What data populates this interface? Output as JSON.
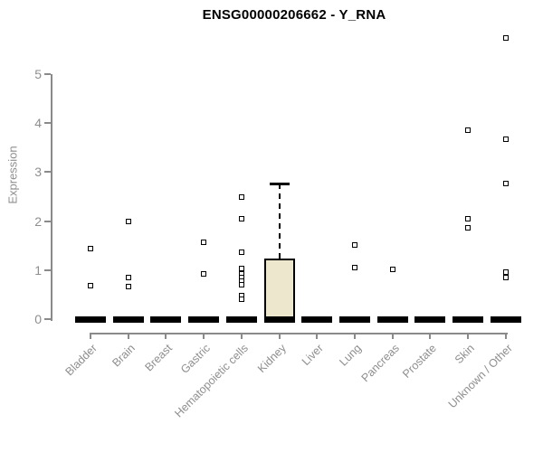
{
  "title": "ENSG00000206662 - Y_RNA",
  "chart_data": {
    "type": "boxplot",
    "title": "ENSG00000206662 - Y_RNA",
    "xlabel": "",
    "ylabel": "Expression",
    "ylim": [
      0,
      5.8
    ],
    "yticks": [
      0,
      1,
      2,
      3,
      4,
      5
    ],
    "grid": false,
    "legend": "none",
    "colors": {
      "box_fill": "#ECE7CD",
      "box_border": "#000000",
      "axis": "#8a8a8a",
      "tick_label": "#8e8e8e",
      "title": "#000000",
      "outlier_fill": "#ffffff",
      "outlier_border": "#000000"
    },
    "categories": [
      "Bladder",
      "Brain",
      "Breast",
      "Gastric",
      "Hematopoietic cells",
      "Kidney",
      "Liver",
      "Lung",
      "Pancreas",
      "Prostate",
      "Skin",
      "Unknown / Other"
    ],
    "series": [
      {
        "category": "Bladder",
        "whisker_low": 0,
        "q1": 0,
        "median": 0,
        "q3": 0,
        "whisker_high": 0,
        "outliers": [
          1.43,
          0.68
        ]
      },
      {
        "category": "Brain",
        "whisker_low": 0,
        "q1": 0,
        "median": 0,
        "q3": 0,
        "whisker_high": 0,
        "outliers": [
          2.0,
          0.85,
          0.67
        ]
      },
      {
        "category": "Breast",
        "whisker_low": 0,
        "q1": 0,
        "median": 0,
        "q3": 0,
        "whisker_high": 0,
        "outliers": []
      },
      {
        "category": "Gastric",
        "whisker_low": 0,
        "q1": 0,
        "median": 0,
        "q3": 0,
        "whisker_high": 0,
        "outliers": [
          1.57,
          0.93
        ]
      },
      {
        "category": "Hematopoietic cells",
        "whisker_low": 0,
        "q1": 0,
        "median": 0,
        "q3": 0,
        "whisker_high": 0,
        "outliers": [
          2.49,
          2.05,
          1.37,
          1.03,
          0.93,
          0.85,
          0.77,
          0.7,
          0.48,
          0.4
        ]
      },
      {
        "category": "Kidney",
        "whisker_low": 0,
        "q1": 0,
        "median": 0,
        "q3": 1.24,
        "whisker_high": 2.77,
        "outliers": []
      },
      {
        "category": "Liver",
        "whisker_low": 0,
        "q1": 0,
        "median": 0,
        "q3": 0,
        "whisker_high": 0,
        "outliers": []
      },
      {
        "category": "Lung",
        "whisker_low": 0,
        "q1": 0,
        "median": 0,
        "q3": 0,
        "whisker_high": 0,
        "outliers": [
          1.51,
          1.05
        ]
      },
      {
        "category": "Pancreas",
        "whisker_low": 0,
        "q1": 0,
        "median": 0,
        "q3": 0,
        "whisker_high": 0,
        "outliers": [
          1.01
        ]
      },
      {
        "category": "Prostate",
        "whisker_low": 0,
        "q1": 0,
        "median": 0,
        "q3": 0,
        "whisker_high": 0,
        "outliers": []
      },
      {
        "category": "Skin",
        "whisker_low": 0,
        "q1": 0,
        "median": 0,
        "q3": 0,
        "whisker_high": 0,
        "outliers": [
          3.85,
          2.04,
          1.86
        ]
      },
      {
        "category": "Unknown / Other",
        "whisker_low": 0,
        "q1": 0,
        "median": 0,
        "q3": 0,
        "whisker_high": 0,
        "outliers": [
          5.74,
          3.67,
          2.76,
          0.96,
          0.85
        ]
      }
    ]
  }
}
